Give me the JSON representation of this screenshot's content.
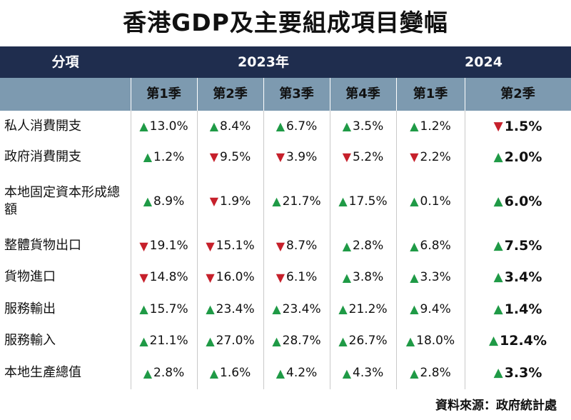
{
  "title": "香港GDP及主要組成項目變幅",
  "header": {
    "item_label": "分項",
    "year_a": "2023年",
    "year_b": "2024",
    "quarters": [
      "第1季",
      "第2季",
      "第3季",
      "第4季",
      "第1季",
      "第2季"
    ]
  },
  "source": "資料來源：政府統計處",
  "colors": {
    "up": "#1f9a46",
    "down": "#c6202b",
    "header_dark": "#1f2d4e",
    "header_light": "#7d9ab0"
  },
  "chart_data": {
    "type": "table",
    "title": "香港GDP及主要組成項目變幅",
    "columns": [
      "2023年 第1季",
      "2023年 第2季",
      "2023年 第3季",
      "2023年 第4季",
      "2024 第1季",
      "2024 第2季"
    ],
    "rows": [
      {
        "label": "私人消費開支",
        "values": [
          "13.0%",
          "8.4%",
          "6.7%",
          "3.5%",
          "1.2%",
          "1.5%"
        ],
        "dirs": [
          "up",
          "up",
          "up",
          "up",
          "up",
          "down"
        ]
      },
      {
        "label": "政府消費開支",
        "values": [
          "1.2%",
          "9.5%",
          "3.9%",
          "5.2%",
          "2.2%",
          "2.0%"
        ],
        "dirs": [
          "up",
          "down",
          "down",
          "down",
          "down",
          "up"
        ]
      },
      {
        "label": "本地固定資本形成總額",
        "values": [
          "8.9%",
          "1.9%",
          "21.7%",
          "17.5%",
          "0.1%",
          "6.0%"
        ],
        "dirs": [
          "up",
          "down",
          "up",
          "up",
          "up",
          "up"
        ]
      },
      {
        "label": "整體貨物出口",
        "values": [
          "19.1%",
          "15.1%",
          "8.7%",
          "2.8%",
          "6.8%",
          "7.5%"
        ],
        "dirs": [
          "down",
          "down",
          "down",
          "up",
          "up",
          "up"
        ]
      },
      {
        "label": "貨物進口",
        "values": [
          "14.8%",
          "16.0%",
          "6.1%",
          "3.8%",
          "3.3%",
          "3.4%"
        ],
        "dirs": [
          "down",
          "down",
          "down",
          "up",
          "up",
          "up"
        ]
      },
      {
        "label": "服務輸出",
        "values": [
          "15.7%",
          "23.4%",
          "23.4%",
          "21.2%",
          "9.4%",
          "1.4%"
        ],
        "dirs": [
          "up",
          "up",
          "up",
          "up",
          "up",
          "up"
        ]
      },
      {
        "label": "服務輸入",
        "values": [
          "21.1%",
          "27.0%",
          "28.7%",
          "26.7%",
          "18.0%",
          "12.4%"
        ],
        "dirs": [
          "up",
          "up",
          "up",
          "up",
          "up",
          "up"
        ]
      },
      {
        "label": "本地生產總值",
        "values": [
          "2.8%",
          "1.6%",
          "4.2%",
          "4.3%",
          "2.8%",
          "3.3%"
        ],
        "dirs": [
          "up",
          "up",
          "up",
          "up",
          "up",
          "up"
        ]
      }
    ]
  }
}
